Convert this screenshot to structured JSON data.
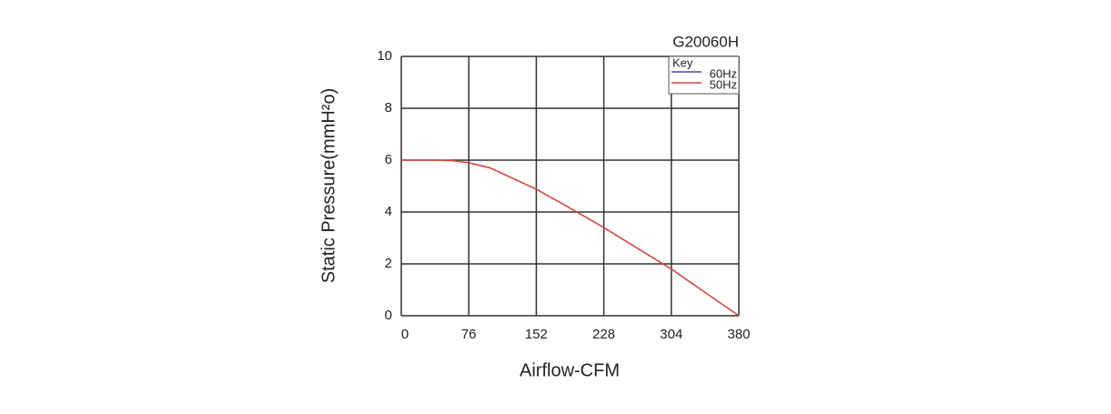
{
  "chart_data": {
    "type": "line",
    "title": "G20060H",
    "x_label": "Airflow-CFM",
    "y_label": "Static Pressure(mmH²o)",
    "legend_title": "Key",
    "x": [
      0,
      38,
      57,
      76,
      100,
      152,
      190,
      228,
      266,
      304,
      342,
      380
    ],
    "series": [
      {
        "name": "60Hz",
        "color": "#4a4aa8",
        "values": [
          null,
          null,
          null,
          null,
          null,
          null,
          null,
          null,
          null,
          null,
          null,
          null
        ]
      },
      {
        "name": "50Hz",
        "color": "#d9453a",
        "values": [
          6,
          6,
          5.98,
          5.9,
          5.7,
          4.88,
          4.15,
          3.4,
          2.6,
          1.8,
          0.9,
          0
        ]
      }
    ],
    "xlim": [
      0,
      380
    ],
    "xticks": [
      0,
      76,
      152,
      228,
      304,
      380
    ],
    "ylim": [
      0,
      10
    ],
    "yticks": [
      0,
      2,
      4,
      6,
      8,
      10
    ],
    "grid": true,
    "legend_position": "upper right"
  }
}
